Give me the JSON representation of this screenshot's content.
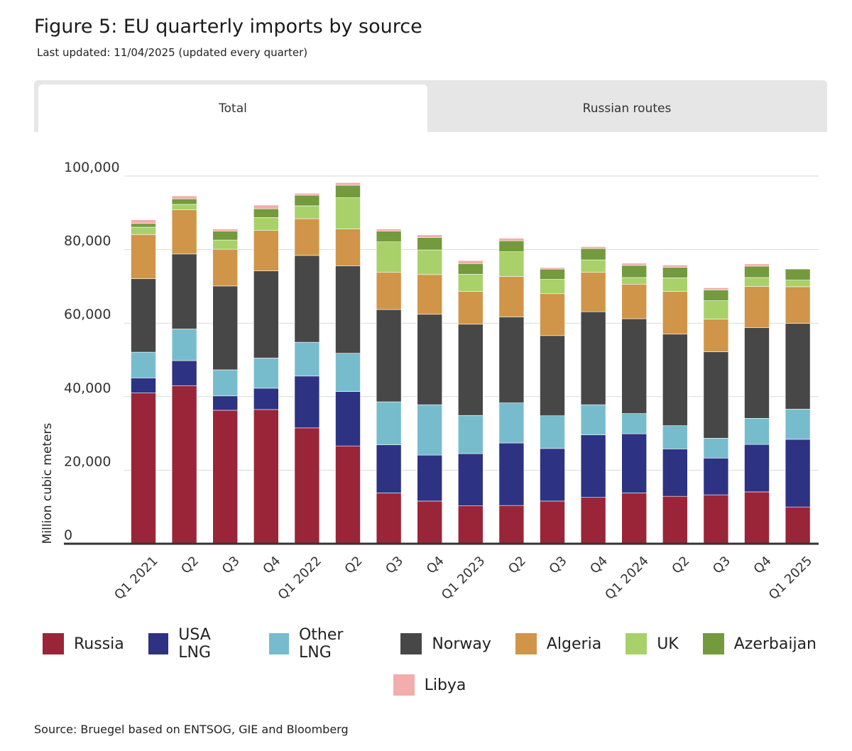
{
  "header": {
    "title": "Figure 5: EU quarterly imports by source",
    "subtitle": "Last updated: 11/04/2025 (updated every quarter)"
  },
  "tabs": [
    {
      "label": "Total",
      "active": true
    },
    {
      "label": "Russian routes",
      "active": false
    }
  ],
  "source": "Source: Bruegel based on ENTSOG, GIE and Bloomberg",
  "chart_data": {
    "type": "bar",
    "stacked": true,
    "ylabel": "Million cubic meters",
    "ylim": [
      0,
      100000
    ],
    "yticks": [
      0,
      20000,
      40000,
      60000,
      80000,
      100000
    ],
    "ytick_labels": [
      "0",
      "20,000",
      "40,000",
      "60,000",
      "80,000",
      "100,000"
    ],
    "grid": true,
    "legend_position": "bottom",
    "categories": [
      "Q1 2021",
      "Q2",
      "Q3",
      "Q4",
      "Q1 2022",
      "Q2",
      "Q3",
      "Q4",
      "Q1 2023",
      "Q2",
      "Q3",
      "Q4",
      "Q1 2024",
      "Q2",
      "Q3",
      "Q4",
      "Q1 2025"
    ],
    "series": [
      {
        "name": "Russia",
        "color": "#9a2538",
        "values": [
          41000,
          43000,
          36300,
          36500,
          31500,
          26600,
          13800,
          11600,
          10300,
          10400,
          11600,
          12600,
          13800,
          12900,
          13300,
          14100,
          10000
        ]
      },
      {
        "name": "USA LNG",
        "color": "#2e3283",
        "values": [
          4100,
          6800,
          3900,
          5800,
          14100,
          14800,
          13100,
          12500,
          14200,
          17000,
          14300,
          17000,
          16100,
          12900,
          10000,
          12900,
          18400
        ]
      },
      {
        "name": "Other LNG",
        "color": "#77bccd",
        "values": [
          7000,
          8600,
          7100,
          8200,
          9200,
          10400,
          11700,
          13700,
          10400,
          10900,
          8900,
          8200,
          5500,
          6300,
          5400,
          7100,
          8200
        ]
      },
      {
        "name": "Norway",
        "color": "#474747",
        "values": [
          20000,
          20400,
          22800,
          23700,
          23600,
          23800,
          25100,
          24600,
          24800,
          23400,
          21800,
          25300,
          25800,
          24900,
          23500,
          24700,
          23300
        ]
      },
      {
        "name": "Algeria",
        "color": "#d09548",
        "values": [
          12000,
          12000,
          10000,
          11000,
          10000,
          10000,
          10100,
          10800,
          8900,
          11000,
          11400,
          10700,
          9400,
          11600,
          8900,
          11200,
          10000
        ]
      },
      {
        "name": "UK",
        "color": "#a8d16a",
        "values": [
          2000,
          1500,
          2500,
          3500,
          3500,
          8500,
          8300,
          6700,
          4700,
          6700,
          3900,
          3400,
          1800,
          3700,
          5000,
          2400,
          1800
        ]
      },
      {
        "name": "Azerbaijan",
        "color": "#739a3d",
        "values": [
          1000,
          1500,
          2400,
          2400,
          2900,
          3400,
          2900,
          3400,
          2900,
          3000,
          2800,
          3100,
          3300,
          2900,
          2900,
          3100,
          3000
        ]
      },
      {
        "name": "Libya",
        "color": "#f2adac",
        "values": [
          1000,
          800,
          600,
          1000,
          500,
          700,
          600,
          700,
          800,
          700,
          400,
          500,
          600,
          600,
          600,
          600,
          0
        ]
      }
    ]
  }
}
